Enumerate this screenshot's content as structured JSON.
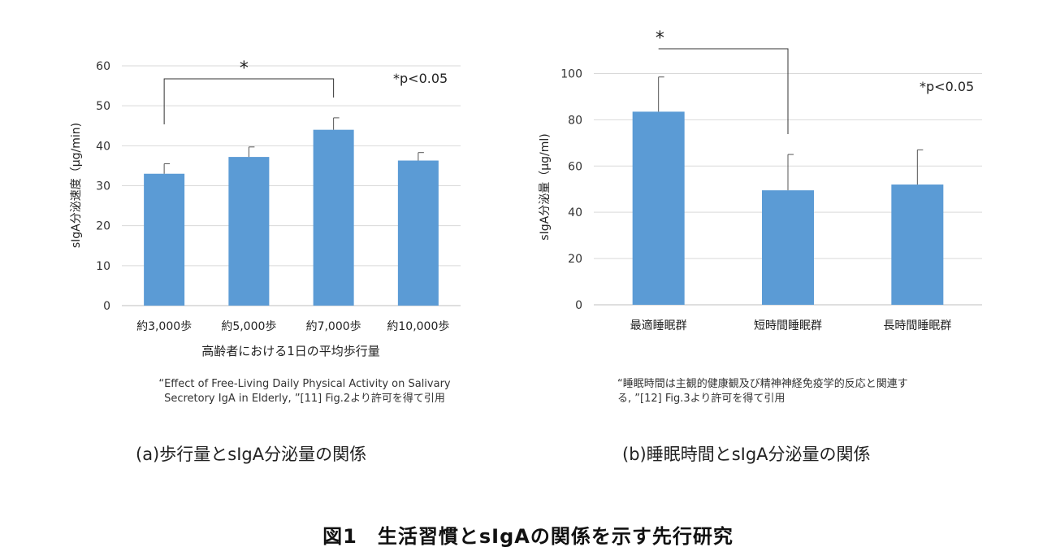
{
  "chart_data": [
    {
      "type": "bar",
      "categories": [
        "約3,000歩",
        "約5,000歩",
        "約7,000歩",
        "約10,000歩"
      ],
      "values": [
        33,
        37.2,
        44,
        36.3
      ],
      "errors": [
        2.5,
        2.5,
        3,
        2
      ],
      "xlabel": "高齢者における1日の平均歩行量",
      "ylabel": "sIgA分泌速度（μg/min)",
      "ylim": [
        0,
        60
      ],
      "yticks": [
        0,
        10,
        20,
        30,
        40,
        50,
        60
      ],
      "significance": {
        "from": 0,
        "to": 2,
        "mark": "*"
      },
      "annotation": "*p<0.05",
      "grid": true,
      "bar_color": "#5b9bd5"
    },
    {
      "type": "bar",
      "categories": [
        "最適睡眠群",
        "短時間睡眠群",
        "長時間睡眠群"
      ],
      "values": [
        83.5,
        49.5,
        52
      ],
      "errors": [
        15,
        15.5,
        15
      ],
      "xlabel": "",
      "ylabel": "sIgA分泌量（μg/ml)",
      "ylim": [
        0,
        110
      ],
      "yticks": [
        0,
        20,
        40,
        60,
        80,
        100
      ],
      "significance": {
        "from": 0,
        "to": 1,
        "mark": "*"
      },
      "annotation": "*p<0.05",
      "grid": true,
      "bar_color": "#5b9bd5"
    }
  ],
  "captions": {
    "a_line1": "“Effect of Free-Living Daily Physical Activity on Salivary",
    "a_line2": "Secretory IgA in Elderly, ”[11] Fig.2より許可を得て引用",
    "b_line1": "“睡眠時間は主観的健康観及び精神神経免疫学的反応と関連す",
    "b_line2": "る, ”[12] Fig.3より許可を得て引用"
  },
  "panel_labels": {
    "a": "(a)歩行量とsIgA分泌量の関係",
    "b": "(b)睡眠時間とsIgA分泌量の関係"
  },
  "figure_title": "図1　生活習慣とsIgAの関係を示す先行研究"
}
